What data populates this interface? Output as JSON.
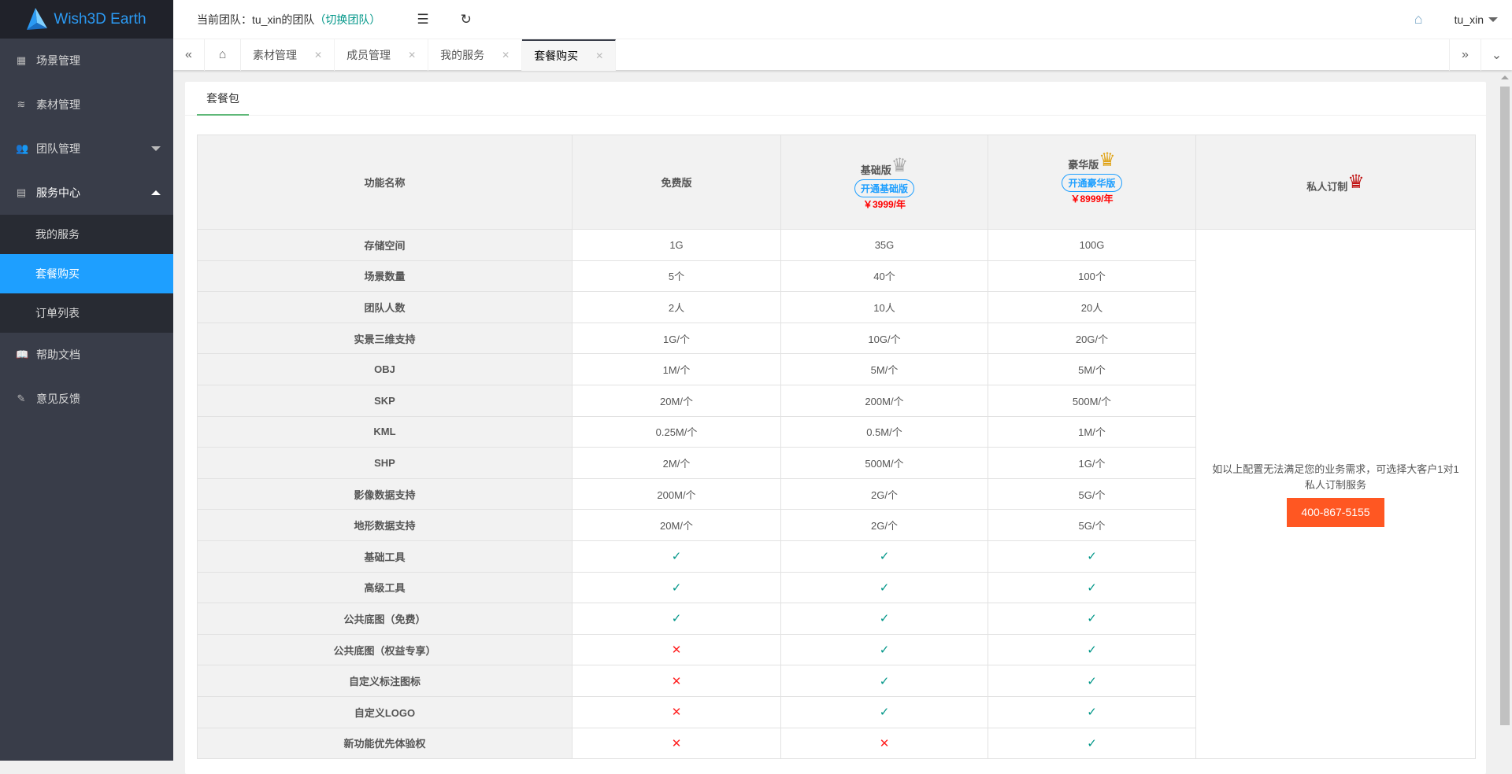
{
  "app": {
    "title": "Wish3D Earth"
  },
  "topbar": {
    "team_prefix": "当前团队：tu_xin的团队",
    "switch_team": "（切换团队）",
    "user": "tu_xin"
  },
  "sidebar": {
    "items": [
      {
        "label": "场景管理",
        "icon": "scene-icon"
      },
      {
        "label": "素材管理",
        "icon": "layers-icon"
      },
      {
        "label": "团队管理",
        "icon": "users-icon"
      },
      {
        "label": "服务中心",
        "icon": "service-icon"
      },
      {
        "label": "帮助文档",
        "icon": "book-icon"
      },
      {
        "label": "意见反馈",
        "icon": "feedback-icon"
      }
    ],
    "sub": [
      {
        "label": "我的服务"
      },
      {
        "label": "套餐购买",
        "active": true
      },
      {
        "label": "订单列表"
      }
    ]
  },
  "tabs": [
    {
      "label": "素材管理"
    },
    {
      "label": "成员管理"
    },
    {
      "label": "我的服务"
    },
    {
      "label": "套餐购买",
      "active": true
    }
  ],
  "content": {
    "tab": "套餐包"
  },
  "table": {
    "headers": {
      "name": "功能名称",
      "free": "免费版",
      "basic": "基础版",
      "basic_btn": "开通基础版",
      "basic_price": "￥3999/年",
      "deluxe": "豪华版",
      "deluxe_btn": "开通豪华版",
      "deluxe_price": "￥8999/年",
      "private": "私人订制"
    },
    "rows": [
      [
        "存储空间",
        "1G",
        "35G",
        "100G"
      ],
      [
        "场景数量",
        "5个",
        "40个",
        "100个"
      ],
      [
        "团队人数",
        "2人",
        "10人",
        "20人"
      ],
      [
        "实景三维支持",
        "1G/个",
        "10G/个",
        "20G/个"
      ],
      [
        "OBJ",
        "1M/个",
        "5M/个",
        "5M/个"
      ],
      [
        "SKP",
        "20M/个",
        "200M/个",
        "500M/个"
      ],
      [
        "KML",
        "0.25M/个",
        "0.5M/个",
        "1M/个"
      ],
      [
        "SHP",
        "2M/个",
        "500M/个",
        "1G/个"
      ],
      [
        "影像数据支持",
        "200M/个",
        "2G/个",
        "5G/个"
      ],
      [
        "地形数据支持",
        "20M/个",
        "2G/个",
        "5G/个"
      ],
      [
        "基础工具",
        "✓",
        "✓",
        "✓"
      ],
      [
        "高级工具",
        "✓",
        "✓",
        "✓"
      ],
      [
        "公共底图（免费）",
        "✓",
        "✓",
        "✓"
      ],
      [
        "公共底图（权益专享）",
        "✕",
        "✓",
        "✓"
      ],
      [
        "自定义标注图标",
        "✕",
        "✓",
        "✓"
      ],
      [
        "自定义LOGO",
        "✕",
        "✓",
        "✓"
      ],
      [
        "新功能优先体验权",
        "✕",
        "✕",
        "✓"
      ]
    ],
    "private_text": "如以上配置无法满足您的业务需求，可选择大客户1对1私人订制服务",
    "phone": "400-867-5155"
  },
  "colors": {
    "accent": "#1e9fff",
    "check": "#009688",
    "cross": "#ff2222",
    "phone_btn": "#ff5722",
    "sidebar": "#393d49"
  }
}
